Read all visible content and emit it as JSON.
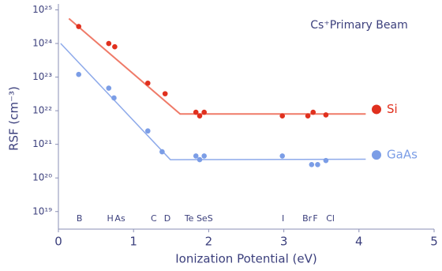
{
  "chart_data": {
    "type": "scatter",
    "title": "Cs⁺Primary Beam",
    "x_label": "Ionization Potential (eV)",
    "y_label": "RSF (cm⁻³)",
    "log_y": true,
    "xlim": [
      0,
      5
    ],
    "xticks": [
      0,
      1,
      2,
      3,
      4,
      5
    ],
    "ylim": [
      3e+18,
      1.5e+25
    ],
    "yticks": [
      {
        "value": 1e+19,
        "label": "10¹⁹"
      },
      {
        "value": 1e+20,
        "label": "10²⁰"
      },
      {
        "value": 1e+21,
        "label": "10²¹"
      },
      {
        "value": 1e+22,
        "label": "10²²"
      },
      {
        "value": 1e+23,
        "label": "10²³"
      },
      {
        "value": 1e+24,
        "label": "10²⁴"
      },
      {
        "value": 1e+25,
        "label": "10²⁵"
      }
    ],
    "series": [
      {
        "name": "Si",
        "color": "#e0301e",
        "x": [
          0.27,
          0.67,
          0.75,
          1.19,
          1.42,
          1.83,
          1.88,
          1.94,
          2.98,
          3.32,
          3.39,
          3.56
        ],
        "values": [
          3.2e+24,
          1e+24,
          8e+23,
          6.6e+22,
          3.2e+22,
          9e+21,
          7e+21,
          9e+21,
          7e+21,
          7e+21,
          9e+21,
          7.5e+21
        ]
      },
      {
        "name": "GaAs",
        "color": "#7b9de6",
        "x": [
          0.27,
          0.67,
          0.74,
          1.19,
          1.38,
          1.83,
          1.88,
          1.94,
          2.98,
          3.37,
          3.45,
          3.56
        ],
        "values": [
          1.2e+23,
          4.7e+22,
          2.4e+22,
          2.5e+21,
          6e+20,
          4.5e+20,
          3.5e+20,
          4.5e+20,
          4.5e+20,
          2.5e+20,
          2.5e+20,
          3.3e+20
        ]
      }
    ],
    "fit_lines": [
      {
        "color": "#ef7a68",
        "x": [
          0.14,
          1.62,
          4.09
        ],
        "values": [
          5.5e+24,
          8e+21,
          8e+21
        ]
      },
      {
        "color": "#8eaaea",
        "x": [
          0.03,
          1.49,
          4.09
        ],
        "values": [
          1e+24,
          3.5e+20,
          3.6e+20
        ]
      }
    ],
    "element_labels": [
      {
        "text": "B",
        "x": 0.28
      },
      {
        "text": "H",
        "x": 0.69
      },
      {
        "text": "As",
        "x": 0.82
      },
      {
        "text": "C",
        "x": 1.27
      },
      {
        "text": "D",
        "x": 1.45
      },
      {
        "text": "Te",
        "x": 1.74
      },
      {
        "text": "Se",
        "x": 1.91
      },
      {
        "text": "S",
        "x": 2.02
      },
      {
        "text": "I",
        "x": 2.99
      },
      {
        "text": "Br",
        "x": 3.31
      },
      {
        "text": "F",
        "x": 3.42
      },
      {
        "text": "Cl",
        "x": 3.62
      }
    ]
  }
}
